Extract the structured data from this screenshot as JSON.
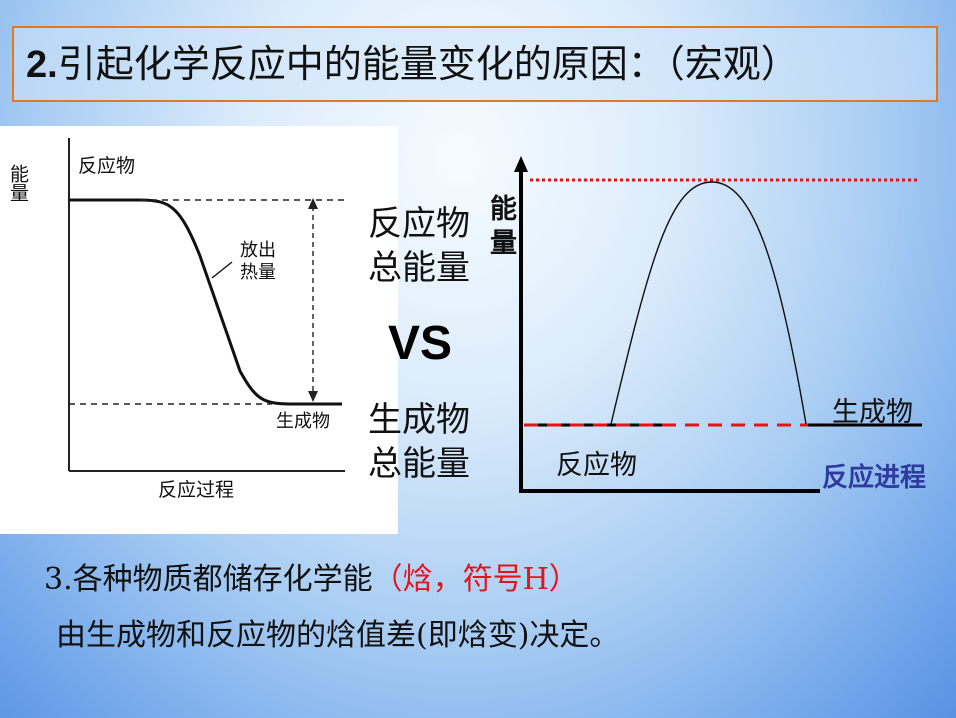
{
  "title": {
    "number": "2.",
    "text": "引起化学反应中的能量变化的原因：（宏观）"
  },
  "left_diagram": {
    "y_axis_label": "能量",
    "x_axis_label": "反应过程",
    "reactant_label": "反应物",
    "product_label": "生成物",
    "heat_label_line1": "放出",
    "heat_label_line2": "热量"
  },
  "comparison": {
    "top_line1": "反应物",
    "top_line2": "总能量",
    "vs": "VS",
    "bottom_line1": "生成物",
    "bottom_line2": "总能量"
  },
  "right_diagram": {
    "y_axis_label_1": "能",
    "y_axis_label_2": "量",
    "x_axis_label": "反应进程",
    "reactant_label": "反应物",
    "product_label": "生成物",
    "colors": {
      "dotted": "#e0161b",
      "axis_label": "#2f3a9e"
    }
  },
  "point3": {
    "line1_black": "3.各种物质都储存化学能",
    "line1_red": "（焓，符号H）",
    "line2": "由生成物和反应物的焓值差(即焓变)决定。"
  }
}
